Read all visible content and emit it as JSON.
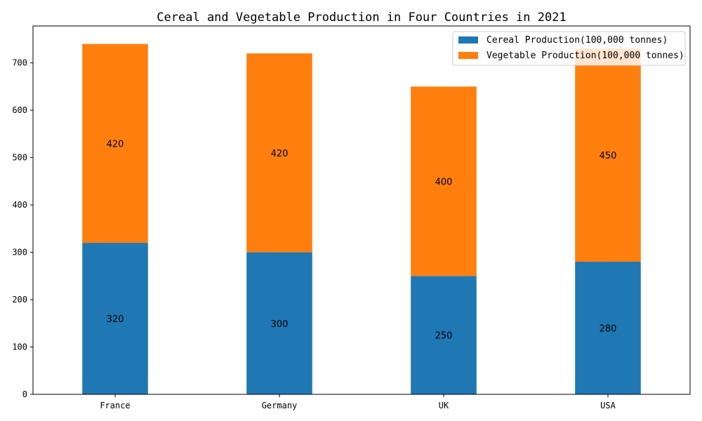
{
  "chart_data": {
    "type": "bar",
    "stacked": true,
    "title": "Cereal and Vegetable Production in Four Countries in 2021",
    "xlabel": "",
    "ylabel": "",
    "categories": [
      "France",
      "Germany",
      "UK",
      "USA"
    ],
    "series": [
      {
        "name": "Cereal Production(100,000 tonnes)",
        "values": [
          320,
          300,
          250,
          280
        ],
        "color": "#1f77b4"
      },
      {
        "name": "Vegetable Production(100,000 tonnes)",
        "values": [
          420,
          420,
          400,
          450
        ],
        "color": "#ff7f0e"
      }
    ],
    "ylim": [
      0,
      778
    ],
    "yticks": [
      0,
      100,
      200,
      300,
      400,
      500,
      600,
      700
    ],
    "grid": false,
    "legend_position": "top-right"
  }
}
